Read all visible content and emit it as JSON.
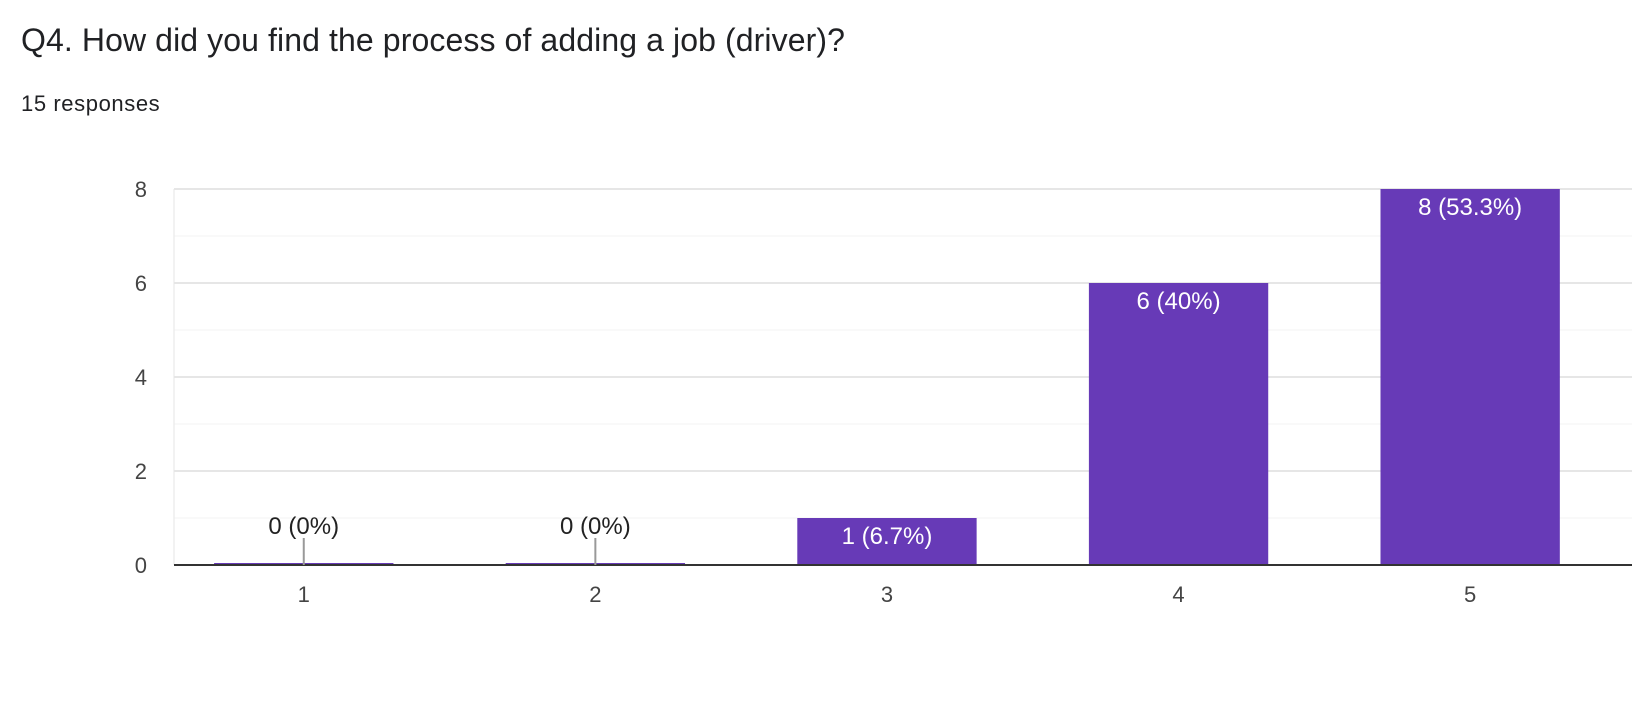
{
  "question": {
    "title": "Q4. How did you find the process of adding a job (driver)?",
    "responses": "15 responses"
  },
  "colors": {
    "bar": "#673ab7",
    "grid_major": "#e6e6e6",
    "grid_minor": "#f3f3f3",
    "axis": "#333333",
    "zero_marker": "#999999",
    "tick_text": "#444444",
    "label_inside": "#ffffff",
    "label_outside": "#222222"
  },
  "chart_data": {
    "type": "bar",
    "categories": [
      "1",
      "2",
      "3",
      "4",
      "5"
    ],
    "values": [
      0,
      0,
      1,
      6,
      8
    ],
    "labels": [
      "0 (0%)",
      "0 (0%)",
      "1 (6.7%)",
      "6 (40%)",
      "8 (53.3%)"
    ],
    "ylim": [
      0,
      8
    ],
    "yticks": [
      "0",
      "2",
      "4",
      "6",
      "8"
    ],
    "grid": true,
    "legend": "none",
    "title": "",
    "xlabel": "",
    "ylabel": ""
  }
}
